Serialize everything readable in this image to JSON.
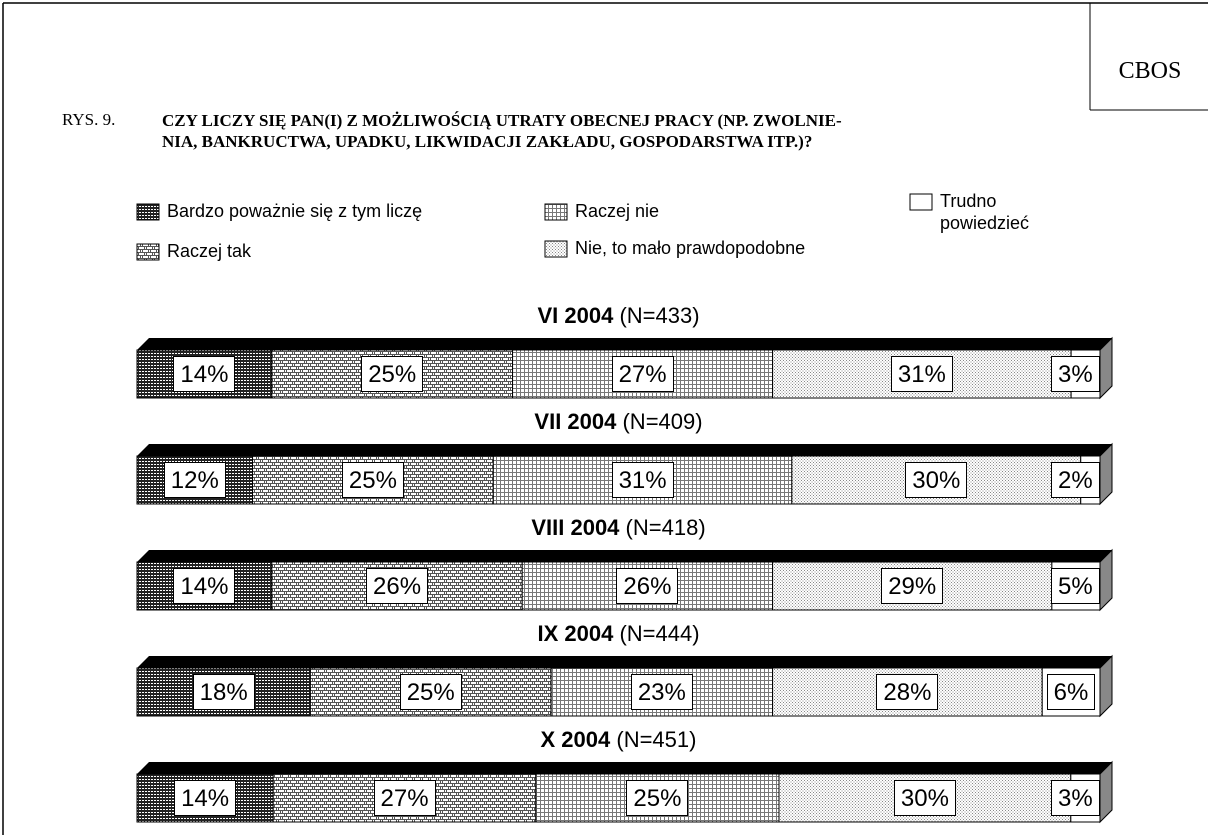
{
  "header": {
    "brand": "CBOS",
    "figure_label": "RYS. 9."
  },
  "chart_data": {
    "type": "stacked-bar",
    "title": [
      "CZY LICZY SIĘ PAN(I) Z MOŻLIWOŚCIĄ UTRATY OBECNEJ PRACY (NP. ZWOLNIE-",
      "NIA, BANKRUCTWA, UPADKU, LIKWIDACJI ZAKŁADU, GOSPODARSTWA ITP.)?"
    ],
    "categories": [
      "VI 2004",
      "VII 2004",
      "VIII 2004",
      "IX 2004",
      "X 2004"
    ],
    "sample_sizes": [
      "(N=433)",
      "(N=409)",
      "(N=418)",
      "(N=444)",
      "(N=451)"
    ],
    "series": [
      {
        "name": "Bardzo poważnie się z tym liczę",
        "color": "#222222",
        "pattern": "grid",
        "values": [
          14,
          12,
          14,
          18,
          14
        ],
        "value_labels": [
          "14%",
          "12%",
          "14%",
          "18%",
          "14%"
        ]
      },
      {
        "name": "Raczej tak",
        "color": "#555555",
        "pattern": "brick",
        "values": [
          25,
          25,
          26,
          25,
          27
        ],
        "value_labels": [
          "25%",
          "25%",
          "26%",
          "25%",
          "27%"
        ]
      },
      {
        "name": "Raczej nie",
        "color": "#777777",
        "pattern": "check",
        "values": [
          27,
          31,
          26,
          23,
          25
        ],
        "value_labels": [
          "27%",
          "31%",
          "26%",
          "23%",
          "25%"
        ]
      },
      {
        "name": "Nie, to mało prawdopodobne",
        "color": "#888888",
        "pattern": "dots",
        "values": [
          31,
          30,
          29,
          28,
          30
        ],
        "value_labels": [
          "31%",
          "30%",
          "29%",
          "28%",
          "30%"
        ]
      },
      {
        "name": "Trudno powiedzieć",
        "color": "#ffffff",
        "pattern": "none",
        "values": [
          3,
          2,
          5,
          6,
          3
        ],
        "value_labels": [
          "3%",
          "2%",
          "5%",
          "6%",
          "3%"
        ]
      }
    ]
  }
}
